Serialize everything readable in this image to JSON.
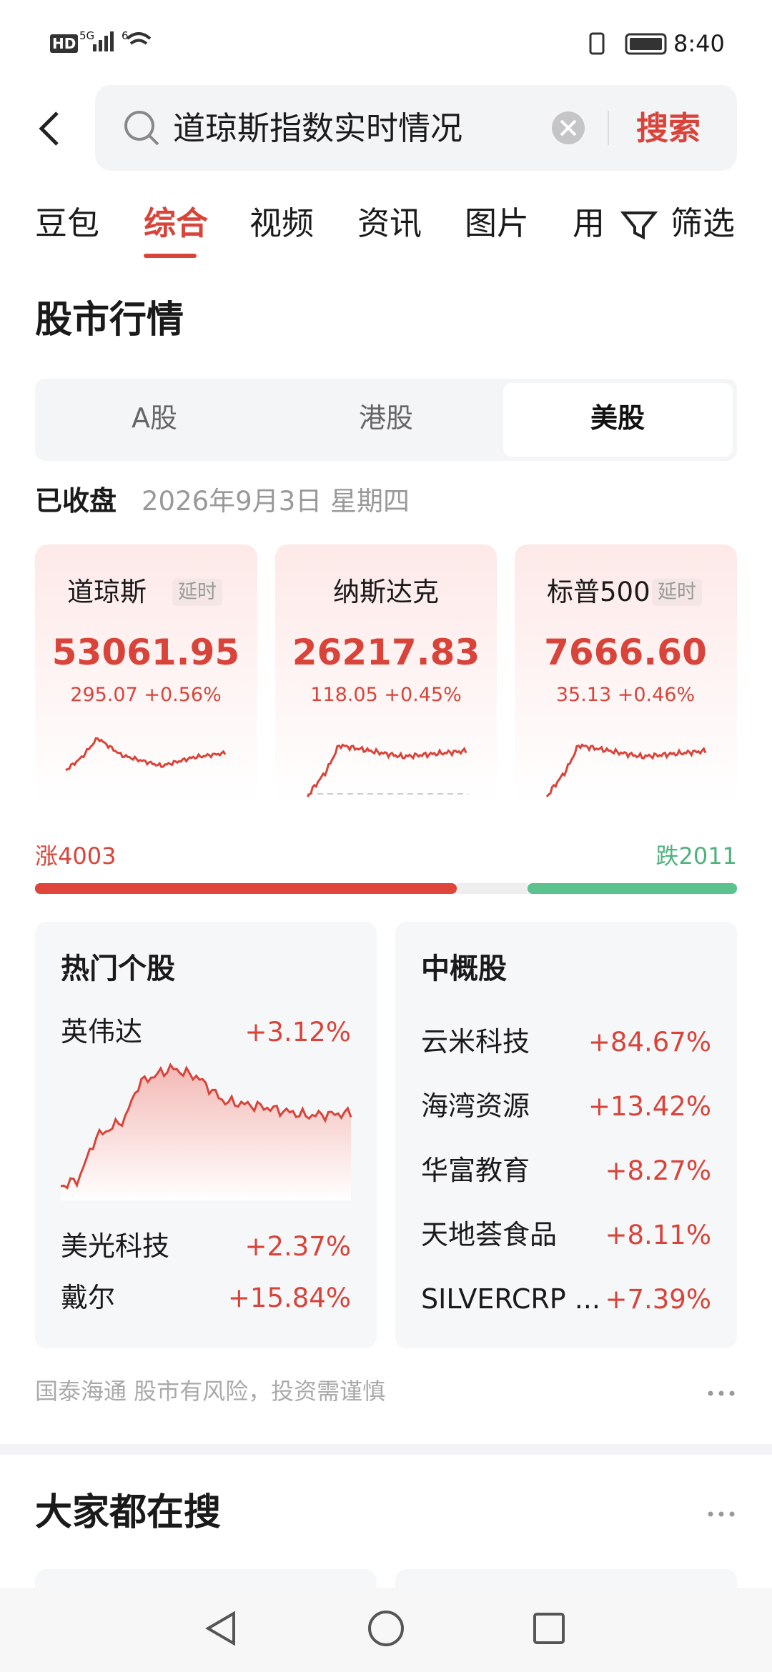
{
  "status_bar": {
    "hd": "HD",
    "network": "5G",
    "signal": "6",
    "time": "8:40"
  },
  "search": {
    "query": "道琼斯指数实时情况",
    "button": "搜索"
  },
  "tabs": [
    "豆包",
    "综合",
    "视频",
    "资讯",
    "图片",
    "用"
  ],
  "filter": "筛选",
  "section_title": "股市行情",
  "market_tabs": [
    "A股",
    "港股",
    "美股"
  ],
  "market_status": "已收盘",
  "date": "2026年9月3日 星期四",
  "indices": [
    {
      "name": "道琼斯",
      "tag": "延时",
      "value": "53061.95",
      "change": "295.07 +0.56%"
    },
    {
      "name": "纳斯达克",
      "value": "26217.83",
      "change": "118.05 +0.45%"
    },
    {
      "name": "标普500",
      "tag": "延时",
      "value": "7666.60",
      "change": "35.13 +0.46%"
    }
  ],
  "breadth": {
    "up": "涨4003",
    "down": "跌2011"
  },
  "hot_stocks": {
    "title": "热门个股",
    "items": [
      {
        "name": "英伟达",
        "change": "+3.12%"
      },
      {
        "name": "美光科技",
        "change": "+2.37%"
      },
      {
        "name": "戴尔",
        "change": "+15.84%"
      }
    ]
  },
  "china_concept": {
    "title": "中概股",
    "items": [
      {
        "name": "云米科技",
        "change": "+84.67%"
      },
      {
        "name": "海湾资源",
        "change": "+13.42%"
      },
      {
        "name": "华富教育",
        "change": "+8.27%"
      },
      {
        "name": "天地荟食品",
        "change": "+8.11%"
      },
      {
        "name": "SILVERCRP ...",
        "change": "+7.39%"
      }
    ]
  },
  "disclaimer": "国泰海通 股市有风险，投资需谨慎",
  "trending": {
    "title": "大家都在搜"
  }
}
